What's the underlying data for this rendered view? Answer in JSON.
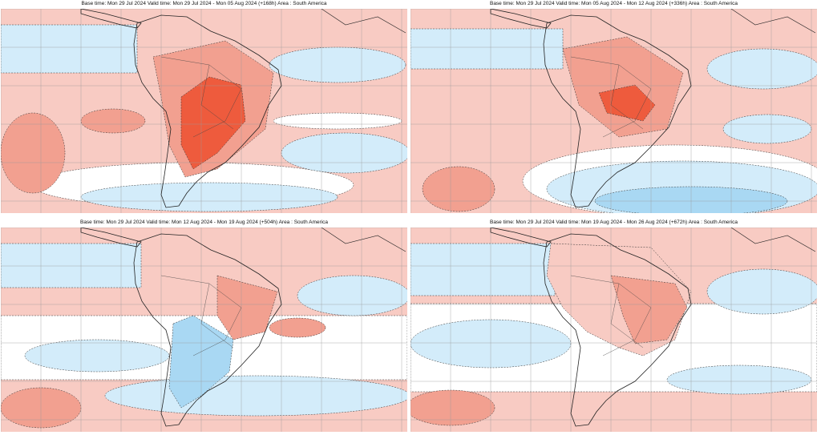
{
  "panels": [
    {
      "title": "Base time: Mon 29 Jul 2024 Valid time: Mon 29 Jul 2024 - Mon 05 Aug 2024 (+168h) Area : South America"
    },
    {
      "title": "Base time: Mon 29 Jul 2024 Valid time: Mon 05 Aug 2024 - Mon 12 Aug 2024 (+336h) Area : South America"
    },
    {
      "title": "Base time: Mon 29 Jul 2024 Valid time: Mon 12 Aug 2024 - Mon 19 Aug 2024 (+504h) Area : South America"
    },
    {
      "title": "Base time: Mon 29 Jul 2024 Valid time: Mon 19 Aug 2024 - Mon 26 Aug 2024 (+672h) Area : South America"
    }
  ]
}
